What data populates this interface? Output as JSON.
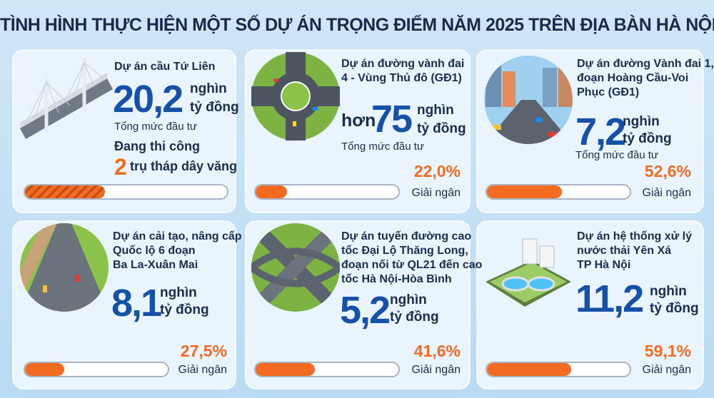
{
  "header": {
    "title": "TÌNH HÌNH THỰC HIỆN MỘT SỐ DỰ ÁN TRỌNG ĐIỂM NĂM 2025 TRÊN ĐỊA BÀN HÀ NỘI"
  },
  "projects": [
    {
      "name_lines": [
        "Dự án cầu Tứ Liên"
      ],
      "amount": "20,2",
      "unit_lines": [
        "nghìn",
        "tỷ đồng"
      ],
      "amount_caption": "Tổng mức đầu tư",
      "status": "Đang thi công",
      "status_count": "2",
      "status_detail": "trụ tháp dây văng"
    },
    {
      "name_lines": [
        "Dự án đường vành đai",
        "4 - Vùng Thủ đô (GĐ1)"
      ],
      "prefix": "hơn",
      "amount": "75",
      "unit_lines": [
        "nghìn",
        "tỷ đồng"
      ],
      "amount_caption": "Tổng mức đầu tư",
      "disbursement": {
        "value": 22.0,
        "label": "22,0%"
      },
      "disbursement_caption": "Giải ngân"
    },
    {
      "name_lines": [
        "Dự án đường Vành đai 1,",
        "đoạn Hoàng Cầu-Voi",
        "Phục (GĐ1)"
      ],
      "amount": "7,2",
      "unit_lines": [
        "nghìn",
        "tỷ đồng"
      ],
      "amount_caption": "Tổng mức đầu tư",
      "disbursement": {
        "value": 52.6,
        "label": "52,6%"
      },
      "disbursement_caption": "Giải ngân"
    },
    {
      "name_lines": [
        "Dự án cải tạo, nâng cấp",
        "Quốc lộ 6 đoạn",
        "Ba La-Xuân Mai"
      ],
      "amount": "8,1",
      "unit_lines": [
        "nghìn",
        "tỷ đồng"
      ],
      "disbursement": {
        "value": 27.5,
        "label": "27,5%"
      },
      "disbursement_caption": "Giải ngân"
    },
    {
      "name_lines": [
        "Dự án tuyến đường cao",
        "tốc Đại Lộ Thăng Long,",
        "đoạn nối từ QL21 đến cao",
        "tốc Hà Nội-Hòa Bình"
      ],
      "amount": "5,2",
      "unit_lines": [
        "nghìn",
        "tỷ đồng"
      ],
      "disbursement": {
        "value": 41.6,
        "label": "41,6%"
      },
      "disbursement_caption": "Giải ngân"
    },
    {
      "name_lines": [
        "Dự án hệ thống xử lý",
        "nước thải Yên Xá",
        "TP Hà Nội"
      ],
      "amount": "11,2",
      "unit_lines": [
        "nghìn",
        "tỷ đồng"
      ],
      "disbursement": {
        "value": 59.1,
        "label": "59,1%"
      },
      "disbursement_caption": "Giải ngân"
    }
  ]
}
